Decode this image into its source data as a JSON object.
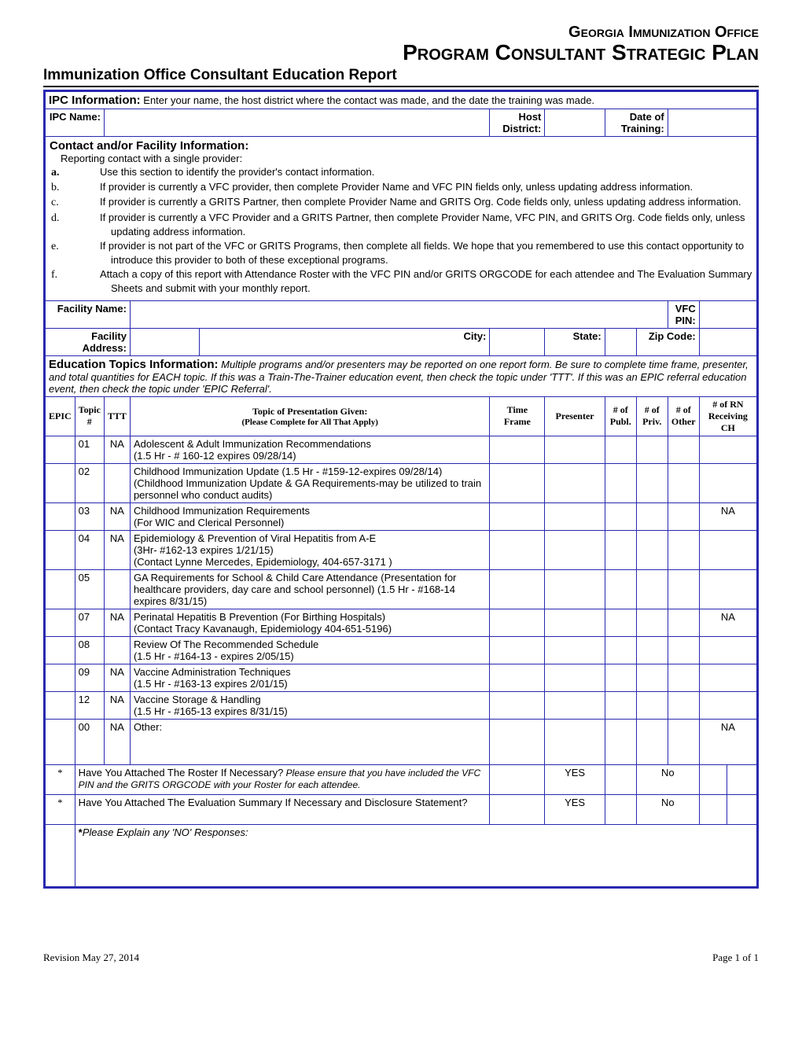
{
  "header": {
    "office": "Georgia Immunization Office",
    "plan": "Program Consultant Strategic Plan"
  },
  "title": "Immunization Office Consultant Education Report",
  "ipc": {
    "header": "IPC Information:",
    "header_sub": " Enter your name, the host district where the contact was made, and the date the training was made.",
    "name_label": "IPC Name:",
    "host_label": "Host District:",
    "date_label": "Date of Training:"
  },
  "contact": {
    "header": "Contact and/or Facility Information:",
    "sub": "Reporting contact with a single provider:",
    "items": [
      {
        "lt": "a.",
        "bold": true,
        "text": "Use this section to identify the provider's contact information."
      },
      {
        "lt": "b.",
        "bold": false,
        "text": "If provider is currently a VFC provider, then complete Provider Name and VFC PIN fields only, unless updating address information."
      },
      {
        "lt": "c.",
        "bold": false,
        "text": "If provider is currently a GRITS Partner, then complete Provider Name and GRITS Org. Code fields only, unless updating address information."
      },
      {
        "lt": "d.",
        "bold": false,
        "text": "If provider is currently a VFC Provider and a GRITS Partner, then complete Provider Name, VFC PIN, and GRITS Org. Code fields only, unless updating address information."
      },
      {
        "lt": "e.",
        "bold": false,
        "text": "If provider is not part of the VFC or GRITS Programs, then complete all fields.  We hope that you remembered to use this contact opportunity to introduce this provider to both of these exceptional programs."
      },
      {
        "lt": "f.",
        "bold": false,
        "text": "Attach a copy of this report with Attendance Roster with the VFC PIN and/or GRITS ORGCODE for each attendee and The Evaluation Summary Sheets and submit with your monthly report."
      }
    ]
  },
  "facility": {
    "name_label": "Facility Name:",
    "vfc_label": "VFC PIN:",
    "addr_label": "Facility Address:",
    "city_label": "City:",
    "state_label": "State:",
    "zip_label": "Zip Code:"
  },
  "edu": {
    "header": "Education Topics Information:",
    "sub": " Multiple programs and/or presenters may be reported on one report form. Be sure to complete time frame, presenter, and total quantities for EACH topic.  If this was a Train-The-Trainer education event, then check the topic under 'TTT'.  If this was an EPIC referral education event, then check the topic under 'EPIC Referral'."
  },
  "columns": {
    "epic": "EPIC",
    "topic_num": "Topic #",
    "ttt": "TTT",
    "topic": "Topic of Presentation Given:",
    "topic_sub": "(Please Complete for All That Apply)",
    "time": "Time Frame",
    "presenter": "Presenter",
    "publ": "# of Publ.",
    "priv": "# of Priv.",
    "other": "# of Other",
    "rn": "# of RN Receiving CH"
  },
  "topics": [
    {
      "num": "01",
      "ttt": "NA",
      "desc": "Adolescent & Adult Immunization Recommendations\n(1.5 Hr - # 160-12 expires 09/28/14)",
      "rn": ""
    },
    {
      "num": "02",
      "ttt": "",
      "desc": "Childhood Immunization Update (1.5 Hr - #159-12-expires 09/28/14) (Childhood Immunization Update & GA Requirements-may be utilized to train personnel who conduct audits)",
      "rn": ""
    },
    {
      "num": "03",
      "ttt": "NA",
      "desc": "Childhood Immunization Requirements\n(For WIC and Clerical Personnel)",
      "rn": "NA"
    },
    {
      "num": "04",
      "ttt": "NA",
      "desc": "Epidemiology & Prevention of Viral Hepatitis from A-E\n(3Hr- #162-13 expires 1/21/15)\n(Contact Lynne Mercedes, Epidemiology, 404-657-3171 )",
      "rn": ""
    },
    {
      "num": "05",
      "ttt": "",
      "desc": "GA Requirements for School & Child Care Attendance (Presentation for healthcare providers, day care and school personnel)  (1.5 Hr - #168-14 expires 8/31/15)",
      "rn": ""
    },
    {
      "num": "07",
      "ttt": "NA",
      "desc": "Perinatal Hepatitis B Prevention (For Birthing Hospitals)\n(Contact Tracy Kavanaugh, Epidemiology  404-651-5196)",
      "rn": "NA"
    },
    {
      "num": "08",
      "ttt": "",
      "desc": "Review Of The Recommended Schedule\n(1.5 Hr - #164-13 - expires 2/05/15)",
      "rn": ""
    },
    {
      "num": "09",
      "ttt": "NA",
      "desc": "Vaccine Administration Techniques\n(1.5 Hr - #163-13  expires 2/01/15)",
      "rn": ""
    },
    {
      "num": "12",
      "ttt": "NA",
      "desc": "Vaccine Storage & Handling\n(1.5 Hr - #165-13 expires 8/31/15)",
      "rn": ""
    },
    {
      "num": "00",
      "ttt": "NA",
      "desc": "Other:",
      "rn": "NA",
      "tall": true
    }
  ],
  "questions": [
    {
      "text": "Have You Attached The Roster If Necessary?",
      "it": " Please ensure that you have included the VFC PIN and    the GRITS ORGCODE with your Roster for each attendee."
    },
    {
      "text": "Have You Attached The Evaluation Summary If Necessary and Disclosure Statement?",
      "it": ""
    }
  ],
  "yes": "YES",
  "no": "No",
  "explain": "Please Explain any 'NO' Responses:",
  "footer": {
    "left": "Revision May 27, 2014",
    "right": "Page 1 of 1"
  },
  "colors": {
    "border": "#2828b0"
  }
}
